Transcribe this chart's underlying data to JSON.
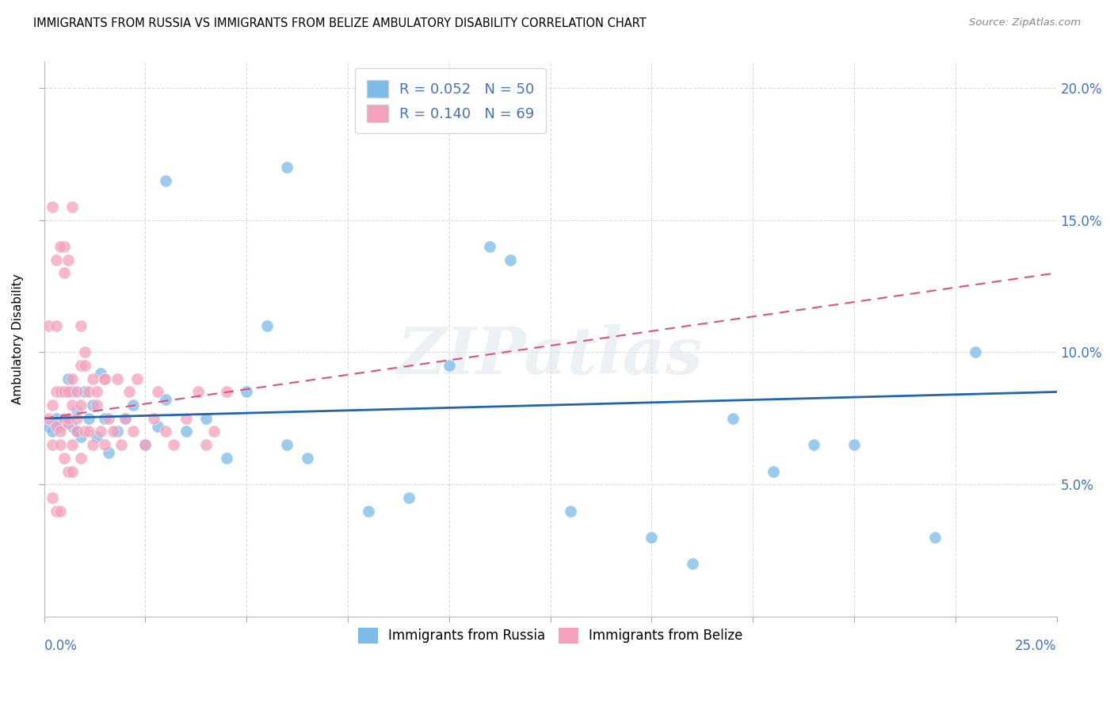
{
  "title": "IMMIGRANTS FROM RUSSIA VS IMMIGRANTS FROM BELIZE AMBULATORY DISABILITY CORRELATION CHART",
  "source": "Source: ZipAtlas.com",
  "ylabel": "Ambulatory Disability",
  "xlim": [
    0.0,
    0.25
  ],
  "ylim": [
    0.0,
    0.21
  ],
  "legend_russia_R": "0.052",
  "legend_russia_N": "50",
  "legend_belize_R": "0.140",
  "legend_belize_N": "69",
  "russia_color": "#7bbce8",
  "belize_color": "#f5a0bc",
  "trendline_russia_color": "#2166ac",
  "trendline_belize_color": "#e05080",
  "watermark": "ZIPatlas",
  "russia_x": [
    0.001,
    0.002,
    0.003,
    0.003,
    0.004,
    0.005,
    0.005,
    0.006,
    0.006,
    0.007,
    0.007,
    0.008,
    0.009,
    0.01,
    0.011,
    0.012,
    0.013,
    0.014,
    0.015,
    0.016,
    0.018,
    0.02,
    0.022,
    0.025,
    0.028,
    0.03,
    0.035,
    0.04,
    0.045,
    0.05,
    0.055,
    0.06,
    0.065,
    0.08,
    0.09,
    0.1,
    0.11,
    0.115,
    0.13,
    0.15,
    0.16,
    0.17,
    0.18,
    0.19,
    0.2,
    0.22,
    0.23,
    0.008,
    0.03,
    0.06
  ],
  "russia_y": [
    0.072,
    0.07,
    0.075,
    0.073,
    0.072,
    0.075,
    0.074,
    0.09,
    0.075,
    0.085,
    0.072,
    0.078,
    0.068,
    0.085,
    0.075,
    0.08,
    0.068,
    0.092,
    0.075,
    0.062,
    0.07,
    0.075,
    0.08,
    0.065,
    0.072,
    0.082,
    0.07,
    0.075,
    0.06,
    0.085,
    0.11,
    0.065,
    0.06,
    0.04,
    0.045,
    0.095,
    0.14,
    0.135,
    0.04,
    0.03,
    0.02,
    0.075,
    0.055,
    0.065,
    0.065,
    0.03,
    0.1,
    0.07,
    0.165,
    0.17
  ],
  "belize_x": [
    0.001,
    0.001,
    0.002,
    0.002,
    0.002,
    0.003,
    0.003,
    0.003,
    0.003,
    0.004,
    0.004,
    0.004,
    0.004,
    0.005,
    0.005,
    0.005,
    0.005,
    0.006,
    0.006,
    0.006,
    0.006,
    0.007,
    0.007,
    0.007,
    0.007,
    0.008,
    0.008,
    0.008,
    0.009,
    0.009,
    0.009,
    0.01,
    0.01,
    0.011,
    0.011,
    0.012,
    0.012,
    0.013,
    0.013,
    0.014,
    0.015,
    0.015,
    0.016,
    0.017,
    0.018,
    0.019,
    0.02,
    0.021,
    0.022,
    0.023,
    0.025,
    0.027,
    0.028,
    0.03,
    0.032,
    0.035,
    0.038,
    0.04,
    0.042,
    0.045,
    0.003,
    0.005,
    0.007,
    0.009,
    0.002,
    0.004,
    0.006,
    0.01,
    0.015
  ],
  "belize_y": [
    0.075,
    0.11,
    0.08,
    0.065,
    0.045,
    0.072,
    0.11,
    0.085,
    0.04,
    0.07,
    0.085,
    0.065,
    0.04,
    0.085,
    0.13,
    0.075,
    0.06,
    0.073,
    0.085,
    0.075,
    0.055,
    0.065,
    0.09,
    0.08,
    0.055,
    0.07,
    0.085,
    0.075,
    0.095,
    0.08,
    0.06,
    0.1,
    0.07,
    0.085,
    0.07,
    0.065,
    0.09,
    0.08,
    0.085,
    0.07,
    0.09,
    0.065,
    0.075,
    0.07,
    0.09,
    0.065,
    0.075,
    0.085,
    0.07,
    0.09,
    0.065,
    0.075,
    0.085,
    0.07,
    0.065,
    0.075,
    0.085,
    0.065,
    0.07,
    0.085,
    0.135,
    0.14,
    0.155,
    0.11,
    0.155,
    0.14,
    0.135,
    0.095,
    0.09
  ]
}
